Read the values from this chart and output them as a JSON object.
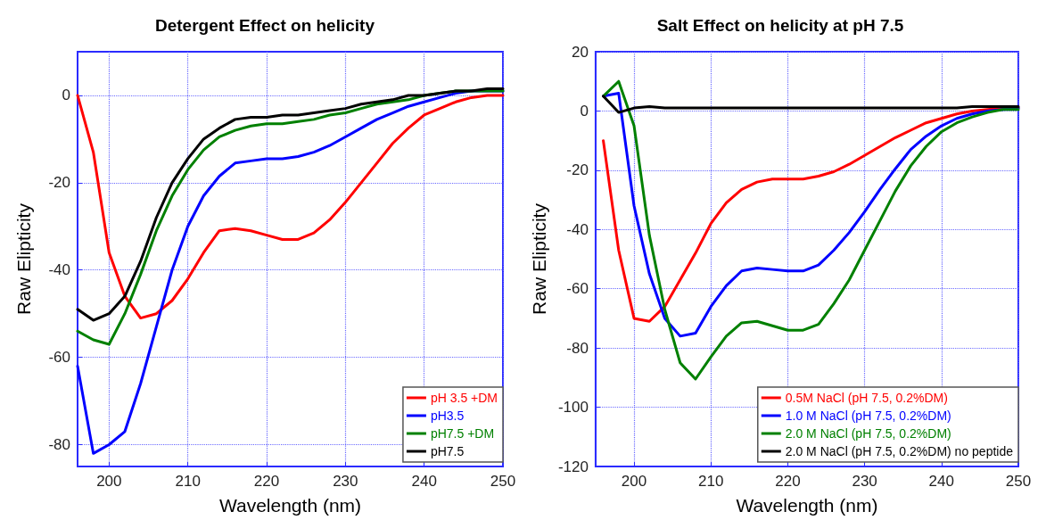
{
  "chart_data": [
    {
      "type": "line",
      "title": "Detergent Effect on helicity",
      "xlabel": "Wavelength (nm)",
      "ylabel": "Raw Elipticity",
      "xlim": [
        196,
        250
      ],
      "xticks": [
        200,
        210,
        220,
        230,
        240,
        250
      ],
      "ylim": [
        -85,
        10
      ],
      "yticks": [
        -80,
        -60,
        -40,
        -20,
        0
      ],
      "grid": true,
      "legend": "bottom right",
      "marker": "none",
      "line_style": "solid",
      "x": [
        196,
        198,
        200,
        202,
        204,
        206,
        208,
        210,
        212,
        214,
        216,
        218,
        220,
        222,
        224,
        226,
        228,
        230,
        232,
        234,
        236,
        238,
        240,
        242,
        244,
        246,
        248,
        250
      ],
      "series": [
        {
          "name": "pH 3.5 +DM",
          "color": "#ff0000",
          "values": [
            0,
            -13,
            -36,
            -46,
            -51,
            -50,
            -47,
            -42,
            -36,
            -31,
            -30.5,
            -31,
            -32,
            -33,
            -33,
            -31.5,
            -28.5,
            -24.5,
            -20,
            -15.5,
            -11,
            -7.5,
            -4.5,
            -3,
            -1.5,
            -0.5,
            0,
            0
          ]
        },
        {
          "name": "pH3.5",
          "color": "#0000ff",
          "values": [
            -62,
            -82,
            -80,
            -77,
            -66,
            -53,
            -40,
            -30,
            -23,
            -18.5,
            -15.5,
            -15,
            -14.5,
            -14.5,
            -14,
            -13,
            -11.5,
            -9.5,
            -7.5,
            -5.5,
            -4,
            -2.5,
            -1.5,
            -0.5,
            0.5,
            1,
            1,
            1
          ]
        },
        {
          "name": "pH7.5 +DM",
          "color": "#008000",
          "values": [
            -54,
            -56,
            -57,
            -50,
            -41,
            -31,
            -23,
            -17,
            -12.5,
            -9.5,
            -8,
            -7,
            -6.5,
            -6.5,
            -6,
            -5.5,
            -4.5,
            -4,
            -3,
            -2,
            -1.5,
            -1,
            0,
            0.5,
            1,
            1,
            1,
            1
          ]
        },
        {
          "name": "pH7.5",
          "color": "#000000",
          "values": [
            -49,
            -51.5,
            -50,
            -46,
            -38,
            -28,
            -20,
            -14.5,
            -10,
            -7.5,
            -5.5,
            -5,
            -5,
            -4.5,
            -4.5,
            -4,
            -3.5,
            -3,
            -2,
            -1.5,
            -1,
            0,
            0,
            0.5,
            1,
            1,
            1.5,
            1.5
          ]
        }
      ]
    },
    {
      "type": "line",
      "title": "Salt Effect on helicity at pH 7.5",
      "xlabel": "Wavelength (nm)",
      "ylabel": "Raw Elipticity",
      "xlim": [
        195,
        250
      ],
      "xticks": [
        200,
        210,
        220,
        230,
        240,
        250
      ],
      "ylim": [
        -120,
        20
      ],
      "yticks": [
        -120,
        -100,
        -80,
        -60,
        -40,
        -20,
        0,
        20
      ],
      "grid": true,
      "legend": "bottom right",
      "marker": "none",
      "line_style": "solid",
      "x": [
        196,
        198,
        200,
        202,
        204,
        206,
        208,
        210,
        212,
        214,
        216,
        218,
        220,
        222,
        224,
        226,
        228,
        230,
        232,
        234,
        236,
        238,
        240,
        242,
        244,
        246,
        248,
        250
      ],
      "series": [
        {
          "name": "0.5M NaCl (pH 7.5, 0.2%DM)",
          "color": "#ff0000",
          "values": [
            -10,
            -47,
            -70,
            -71,
            -66,
            -57,
            -48,
            -38,
            -31,
            -26.5,
            -24,
            -23,
            -23,
            -23,
            -22,
            -20.5,
            -18,
            -15,
            -12,
            -9,
            -6.5,
            -4,
            -2.5,
            -1,
            0,
            0.5,
            1,
            1
          ]
        },
        {
          "name": "1.0 M NaCl (pH 7.5, 0.2%DM)",
          "color": "#0000ff",
          "values": [
            5,
            6,
            -32,
            -55,
            -70,
            -76,
            -75,
            -66,
            -59,
            -54,
            -53,
            -53.5,
            -54,
            -54,
            -52,
            -47,
            -41,
            -34,
            -26.5,
            -19.5,
            -13,
            -8.5,
            -5,
            -2.5,
            -1,
            0,
            0.5,
            1
          ]
        },
        {
          "name": "2.0 M NaCl (pH 7.5, 0.2%DM)",
          "color": "#008000",
          "values": [
            5,
            10,
            -5,
            -42,
            -67,
            -85,
            -90.5,
            -83,
            -76,
            -71.5,
            -71,
            -72.5,
            -74,
            -74,
            -72,
            -65,
            -57,
            -47,
            -37,
            -27,
            -18.5,
            -12,
            -7,
            -4,
            -2,
            -0.5,
            0.5,
            0.5
          ]
        },
        {
          "name": "2.0 M NaCl (pH 7.5, 0.2%DM) no peptide",
          "color": "#000000",
          "values": [
            5,
            -0.5,
            1,
            1.5,
            1,
            1,
            1,
            1,
            1,
            1,
            1,
            1,
            1,
            1,
            1,
            1,
            1,
            1,
            1,
            1,
            1,
            1,
            1,
            1,
            1.5,
            1.5,
            1.5,
            1.5
          ]
        }
      ]
    }
  ]
}
